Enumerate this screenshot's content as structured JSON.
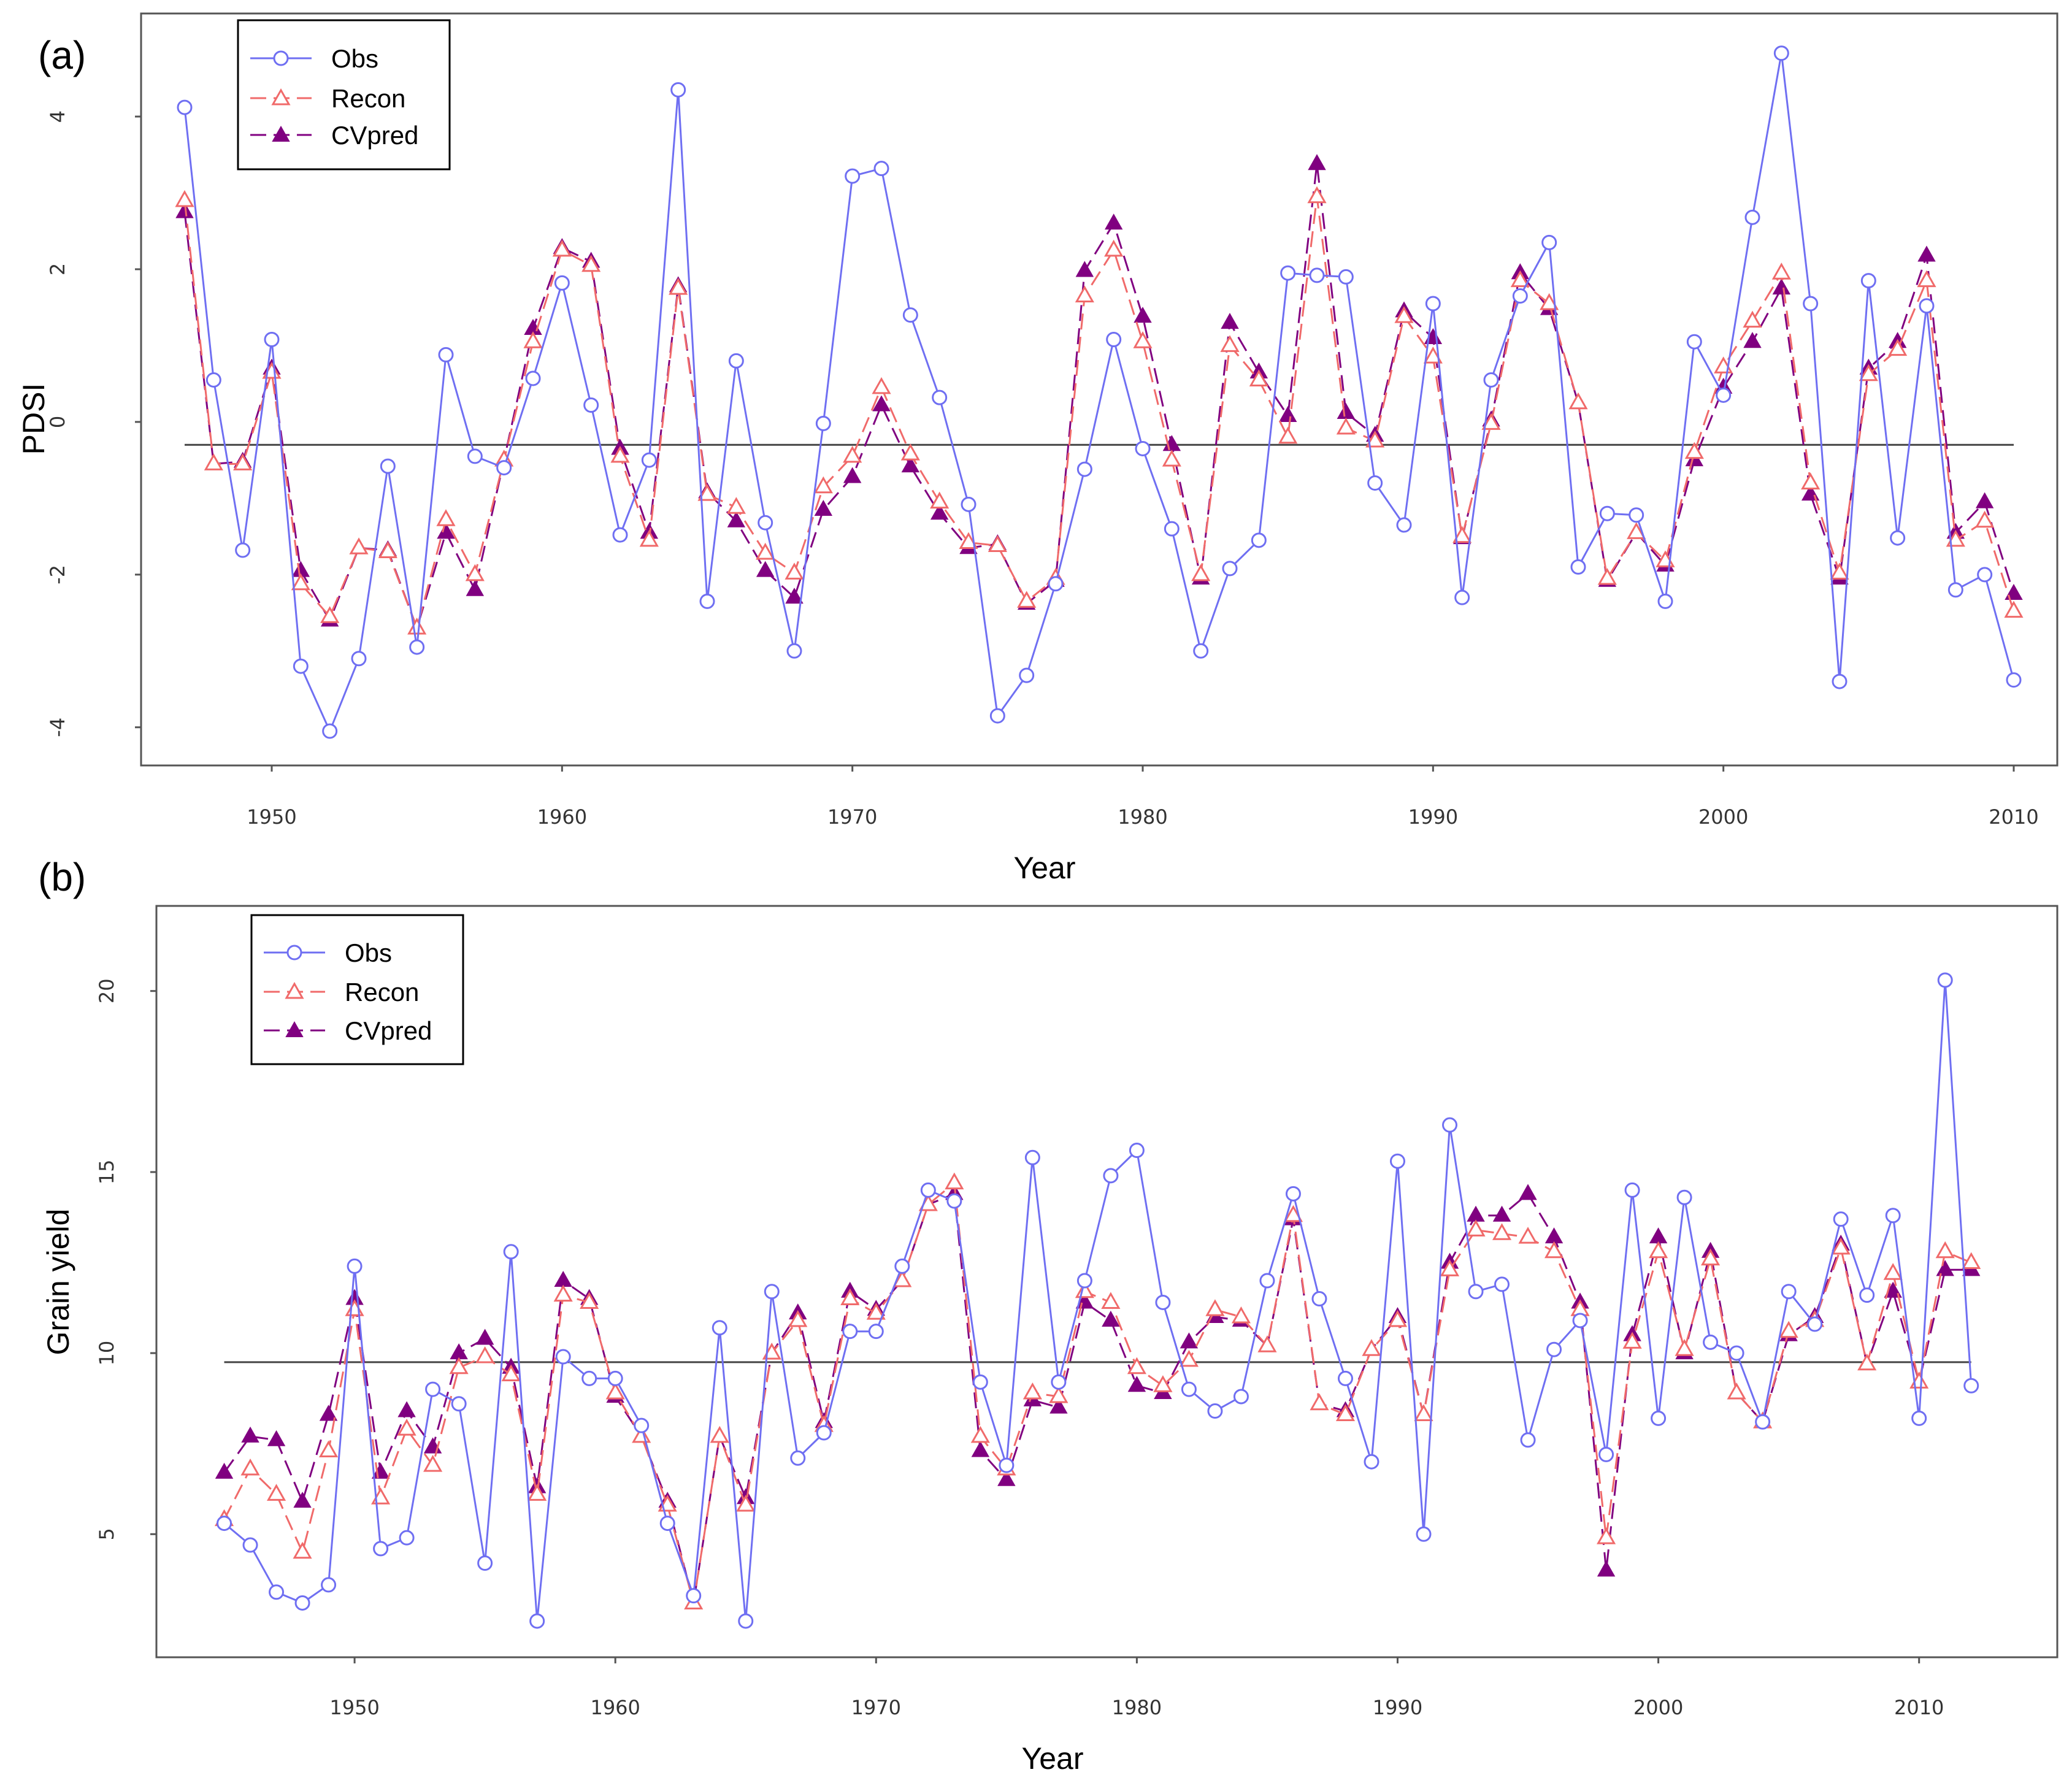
{
  "colors": {
    "obs": "#6f6ff2",
    "recon": "#f06a6a",
    "cvpred": "#800080",
    "baseline": "#444444"
  },
  "chart_data": [
    {
      "id": "a",
      "type": "line",
      "panel_label": "(a)",
      "title": "",
      "xlabel": "Year",
      "ylabel": "PDSI",
      "xlim": [
        1945.5,
        2011.5
      ],
      "ylim": [
        -4.5,
        5.35
      ],
      "xticks": [
        1950,
        1960,
        1970,
        1980,
        1990,
        2000,
        2010
      ],
      "yticks": [
        -4,
        -2,
        0,
        2,
        4
      ],
      "baseline": -0.3,
      "legend": [
        "Obs",
        "Recon",
        "CVpred"
      ],
      "legend_position": "top-left",
      "x": [
        1947,
        1948,
        1949,
        1950,
        1951,
        1952,
        1953,
        1954,
        1955,
        1956,
        1957,
        1958,
        1959,
        1960,
        1961,
        1962,
        1963,
        1964,
        1965,
        1966,
        1967,
        1968,
        1969,
        1970,
        1971,
        1972,
        1973,
        1974,
        1975,
        1976,
        1977,
        1978,
        1979,
        1980,
        1981,
        1982,
        1983,
        1984,
        1985,
        1986,
        1987,
        1988,
        1989,
        1990,
        1991,
        1992,
        1993,
        1994,
        1995,
        1996,
        1997,
        1998,
        1999,
        2000,
        2001,
        2002,
        2003,
        2004,
        2005,
        2006,
        2007,
        2008,
        2009,
        2010
      ],
      "series": [
        {
          "name": "Obs",
          "values": [
            4.12,
            0.55,
            -1.68,
            1.08,
            -3.2,
            -4.05,
            -3.1,
            -0.58,
            -2.95,
            0.88,
            -0.45,
            -0.6,
            0.57,
            1.82,
            0.22,
            -1.48,
            -0.5,
            4.35,
            -2.35,
            0.8,
            -1.32,
            -3.0,
            -0.02,
            3.22,
            3.32,
            1.4,
            0.32,
            -1.08,
            -3.85,
            -3.32,
            -2.12,
            -0.62,
            1.08,
            -0.35,
            -1.4,
            -3.0,
            -1.92,
            -1.55,
            1.95,
            1.92,
            1.9,
            -0.8,
            -1.35,
            1.55,
            -2.3,
            0.55,
            1.65,
            2.35,
            -1.9,
            -1.2,
            -1.22,
            -2.35,
            1.05,
            0.35,
            2.68,
            4.83,
            1.55,
            -3.4,
            1.85,
            -1.52,
            1.52,
            -2.2,
            -2.0,
            -3.38
          ]
        },
        {
          "name": "Recon",
          "values": [
            2.9,
            -0.55,
            -0.55,
            0.65,
            -2.12,
            -2.55,
            -1.65,
            -1.7,
            -2.7,
            -1.28,
            -2.0,
            -0.5,
            1.05,
            2.25,
            2.05,
            -0.45,
            -1.55,
            1.75,
            -0.95,
            -1.12,
            -1.72,
            -1.98,
            -0.85,
            -0.45,
            0.45,
            -0.42,
            -1.05,
            -1.58,
            -1.62,
            -2.35,
            -2.05,
            1.65,
            2.25,
            1.05,
            -0.5,
            -2.0,
            1.0,
            0.55,
            -0.2,
            2.95,
            -0.08,
            -0.25,
            1.38,
            0.85,
            -1.5,
            -0.02,
            1.85,
            1.55,
            0.25,
            -2.05,
            -1.45,
            -1.82,
            -0.4,
            0.72,
            1.32,
            1.95,
            -0.8,
            -1.98,
            0.62,
            0.95,
            1.85,
            -1.55,
            -1.3,
            -2.48
          ]
        },
        {
          "name": "CVpred",
          "values": [
            2.75,
            -0.55,
            -0.52,
            0.7,
            -1.95,
            -2.6,
            -1.65,
            -1.68,
            -2.7,
            -1.45,
            -2.2,
            -0.5,
            1.22,
            2.28,
            2.1,
            -0.35,
            -1.45,
            1.78,
            -0.92,
            -1.3,
            -1.95,
            -2.3,
            -1.15,
            -0.72,
            0.22,
            -0.58,
            -1.2,
            -1.65,
            -1.6,
            -2.38,
            -2.08,
            1.98,
            2.6,
            1.38,
            -0.3,
            -2.05,
            1.3,
            0.65,
            0.08,
            3.38,
            0.12,
            -0.18,
            1.45,
            1.1,
            -1.52,
            0.02,
            1.95,
            1.48,
            0.25,
            -2.08,
            -1.45,
            -1.88,
            -0.5,
            0.45,
            1.05,
            1.75,
            -0.95,
            -2.05,
            0.7,
            1.05,
            2.18,
            -1.45,
            -1.05,
            -2.25
          ]
        }
      ]
    },
    {
      "id": "b",
      "type": "line",
      "panel_label": "(b)",
      "title": "",
      "xlabel": "Year",
      "ylabel": "Grain  yield",
      "xlim": [
        1942.4,
        2015.3
      ],
      "ylim": [
        1.6,
        22.35
      ],
      "xticks": [
        1950,
        1960,
        1970,
        1980,
        1990,
        2000,
        2010
      ],
      "yticks": [
        5,
        10,
        15,
        20
      ],
      "baseline": 9.75,
      "legend": [
        "Obs",
        "Recon",
        "CVpred"
      ],
      "legend_position": "top-left",
      "x": [
        1945,
        1946,
        1947,
        1948,
        1949,
        1950,
        1951,
        1952,
        1953,
        1954,
        1955,
        1956,
        1957,
        1958,
        1959,
        1960,
        1961,
        1962,
        1963,
        1964,
        1965,
        1966,
        1967,
        1968,
        1969,
        1970,
        1971,
        1972,
        1973,
        1974,
        1975,
        1976,
        1977,
        1978,
        1979,
        1980,
        1981,
        1982,
        1983,
        1984,
        1985,
        1986,
        1987,
        1988,
        1989,
        1990,
        1991,
        1992,
        1993,
        1994,
        1995,
        1996,
        1997,
        1998,
        1999,
        2000,
        2001,
        2002,
        2003,
        2004,
        2005,
        2006,
        2007,
        2008,
        2009,
        2010,
        2011,
        2012
      ],
      "series": [
        {
          "name": "Obs",
          "values": [
            5.3,
            4.7,
            3.4,
            3.1,
            3.6,
            12.4,
            4.6,
            4.9,
            9.0,
            8.6,
            4.2,
            12.8,
            2.6,
            9.9,
            9.3,
            9.3,
            8.0,
            5.3,
            3.3,
            10.7,
            2.6,
            11.7,
            7.1,
            7.8,
            10.6,
            10.6,
            12.4,
            14.5,
            14.2,
            9.2,
            6.9,
            15.4,
            9.2,
            12.0,
            14.9,
            15.6,
            11.4,
            9.0,
            8.4,
            8.8,
            12.0,
            14.4,
            11.5,
            9.3,
            7.0,
            15.3,
            5.0,
            16.3,
            11.7,
            11.9,
            7.6,
            10.1,
            10.9,
            7.2,
            14.5,
            8.2,
            14.3,
            10.3,
            10.0,
            8.1,
            11.7,
            10.8,
            13.7,
            11.6,
            13.8,
            8.2,
            20.3,
            9.1
          ]
        },
        {
          "name": "Recon",
          "values": [
            5.4,
            6.8,
            6.1,
            4.5,
            7.3,
            11.2,
            6.0,
            7.9,
            6.9,
            9.6,
            9.9,
            9.4,
            6.1,
            11.6,
            11.4,
            8.9,
            7.7,
            5.8,
            3.1,
            7.7,
            5.8,
            10.0,
            10.9,
            8.0,
            11.5,
            11.1,
            12.0,
            14.1,
            14.7,
            7.7,
            6.8,
            8.9,
            8.8,
            11.7,
            11.4,
            9.6,
            9.1,
            9.8,
            11.2,
            11.0,
            10.2,
            13.8,
            8.6,
            8.3,
            10.1,
            10.9,
            8.3,
            12.3,
            13.4,
            13.3,
            13.2,
            12.8,
            11.2,
            4.9,
            10.3,
            12.8,
            10.1,
            12.6,
            8.9,
            8.1,
            10.6,
            10.9,
            12.9,
            9.7,
            12.2,
            9.2,
            12.8,
            12.5
          ]
        },
        {
          "name": "CVpred",
          "values": [
            6.7,
            7.7,
            7.6,
            5.9,
            8.3,
            11.5,
            6.7,
            8.4,
            7.4,
            10.0,
            10.4,
            9.6,
            6.3,
            12.0,
            11.5,
            8.8,
            7.7,
            5.9,
            3.1,
            7.7,
            6.0,
            10.0,
            11.1,
            8.1,
            11.7,
            11.2,
            12.0,
            14.1,
            14.4,
            7.3,
            6.5,
            8.7,
            8.5,
            11.4,
            10.9,
            9.1,
            8.9,
            10.3,
            11.0,
            10.9,
            10.2,
            13.7,
            8.6,
            8.4,
            10.1,
            11.0,
            8.3,
            12.5,
            13.8,
            13.8,
            14.4,
            13.2,
            11.4,
            4.0,
            10.5,
            13.2,
            10.0,
            12.8,
            8.9,
            8.1,
            10.5,
            11.0,
            13.0,
            9.7,
            11.7,
            9.2,
            12.3,
            12.3
          ]
        }
      ]
    }
  ]
}
